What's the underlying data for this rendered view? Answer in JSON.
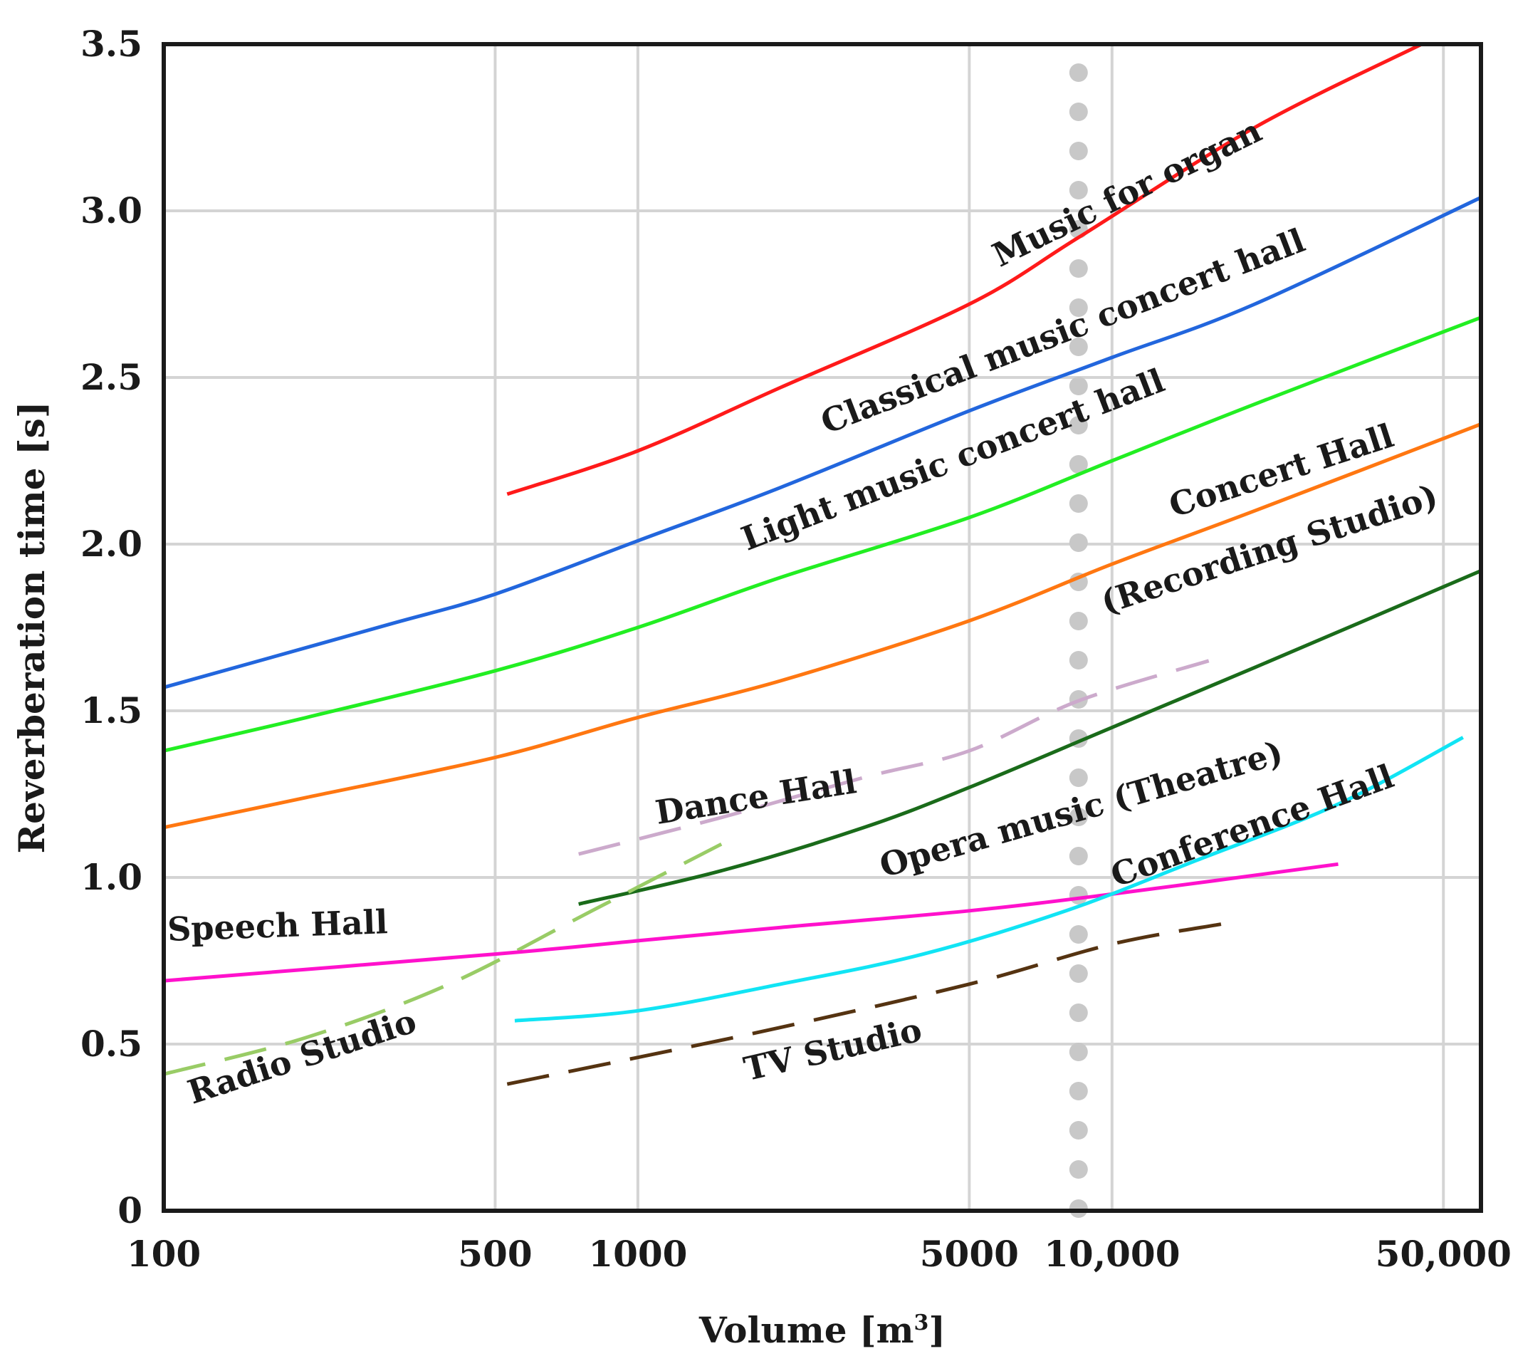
{
  "chart_data": {
    "type": "line",
    "title": "",
    "xlabel": "Volume [m",
    "xlabel_sup": "3",
    "xlabel_close": "]",
    "ylabel": "Reverberation time [s]",
    "xscale": "log",
    "xlim": [
      100,
      60000
    ],
    "ylim": [
      0,
      3.5
    ],
    "xtick_values": [
      100,
      500,
      1000,
      5000,
      10000,
      50000
    ],
    "xtick_labels": [
      "100",
      "500",
      "1000",
      "5000",
      "10,000",
      "50,000"
    ],
    "ytick_values": [
      0,
      0.5,
      1.0,
      1.5,
      2.0,
      2.5,
      3.0,
      3.5
    ],
    "ytick_labels": [
      "0",
      "0.5",
      "1.0",
      "1.5",
      "2.0",
      "2.5",
      "3.0",
      "3.5"
    ],
    "grid": true,
    "reference_line": {
      "x": 8500,
      "style": "dotted",
      "color": "#c8c8c8"
    },
    "series": [
      {
        "name": "Music for organ",
        "color": "#ff1a1a",
        "dash": false,
        "x": [
          530,
          1000,
          2000,
          5000,
          8500,
          20000,
          45000
        ],
        "y": [
          2.15,
          2.28,
          2.47,
          2.72,
          2.92,
          3.25,
          3.5
        ],
        "label": {
          "text": "Music for organ",
          "at": [
            5800,
            2.83
          ],
          "angle": -26
        }
      },
      {
        "name": "Classical music concert hall",
        "color": "#2266dd",
        "dash": false,
        "x": [
          100,
          150,
          300,
          500,
          1000,
          2000,
          5000,
          10000,
          20000,
          60000
        ],
        "y": [
          1.57,
          1.64,
          1.76,
          1.85,
          2.01,
          2.17,
          2.4,
          2.56,
          2.72,
          3.04
        ],
        "label": {
          "text": "Classical music concert hall",
          "at": [
            2500,
            2.33
          ],
          "angle": -21
        }
      },
      {
        "name": "Light music concert hall",
        "color": "#22ee22",
        "dash": false,
        "x": [
          100,
          200,
          500,
          1000,
          2000,
          5000,
          10000,
          20000,
          60000
        ],
        "y": [
          1.38,
          1.48,
          1.62,
          1.75,
          1.9,
          2.08,
          2.25,
          2.42,
          2.68
        ],
        "label": {
          "text": "Light music concert hall",
          "at": [
            1700,
            1.98
          ],
          "angle": -21
        }
      },
      {
        "name": "Concert Hall (Recording Studio)",
        "color": "#ff7711",
        "dash": false,
        "x": [
          100,
          200,
          500,
          1000,
          2000,
          5000,
          10000,
          20000,
          60000
        ],
        "y": [
          1.15,
          1.24,
          1.36,
          1.48,
          1.59,
          1.77,
          1.94,
          2.1,
          2.36
        ],
        "label": {
          "text": "Concert Hall",
          "at": [
            13500,
            2.08
          ],
          "angle": -18
        },
        "label2": {
          "text": "(Recording Studio)",
          "at": [
            9700,
            1.79
          ],
          "angle": -18
        }
      },
      {
        "name": "Opera music (Theatre)",
        "color": "#1a6b1a",
        "dash": false,
        "x": [
          750,
          1500,
          3000,
          5000,
          10000,
          20000,
          60000
        ],
        "y": [
          0.92,
          1.02,
          1.15,
          1.27,
          1.45,
          1.63,
          1.92
        ],
        "label": {
          "text": "Opera music (Theatre)",
          "at": [
            3300,
            1.0
          ],
          "angle": -16
        }
      },
      {
        "name": "Dance Hall",
        "color": "#ccaacc",
        "dash": true,
        "x": [
          750,
          1500,
          3000,
          5000,
          8500,
          16000
        ],
        "y": [
          1.07,
          1.18,
          1.3,
          1.38,
          1.53,
          1.65
        ],
        "label": {
          "text": "Dance Hall",
          "at": [
            1100,
            1.16
          ],
          "angle": -9
        }
      },
      {
        "name": "Radio Studio",
        "color": "#99cc66",
        "dash": true,
        "x": [
          100,
          200,
          400,
          800,
          1500
        ],
        "y": [
          0.41,
          0.52,
          0.68,
          0.9,
          1.1
        ],
        "label": {
          "text": "Radio Studio",
          "at": [
            115,
            0.32
          ],
          "angle": -18
        }
      },
      {
        "name": "Speech Hall",
        "color": "#ff11cc",
        "dash": false,
        "x": [
          100,
          500,
          1000,
          2000,
          5000,
          10000,
          30000
        ],
        "y": [
          0.69,
          0.77,
          0.81,
          0.85,
          0.9,
          0.95,
          1.04
        ],
        "label": {
          "text": "Speech Hall",
          "at": [
            102,
            0.81
          ],
          "angle": -2
        }
      },
      {
        "name": "Conference Hall",
        "color": "#11e4f4",
        "dash": false,
        "x": [
          550,
          1000,
          2000,
          4000,
          8000,
          15000,
          30000,
          55000
        ],
        "y": [
          0.57,
          0.6,
          0.68,
          0.77,
          0.9,
          1.05,
          1.22,
          1.42
        ],
        "label": {
          "text": "Conference Hall",
          "at": [
            10200,
            0.97
          ],
          "angle": -20
        }
      },
      {
        "name": "TV Studio",
        "color": "#553311",
        "dash": true,
        "x": [
          530,
          1000,
          2000,
          5000,
          10000,
          17000
        ],
        "y": [
          0.38,
          0.46,
          0.55,
          0.68,
          0.8,
          0.86
        ],
        "label": {
          "text": "TV Studio",
          "at": [
            1700,
            0.39
          ],
          "angle": -13
        }
      }
    ]
  }
}
